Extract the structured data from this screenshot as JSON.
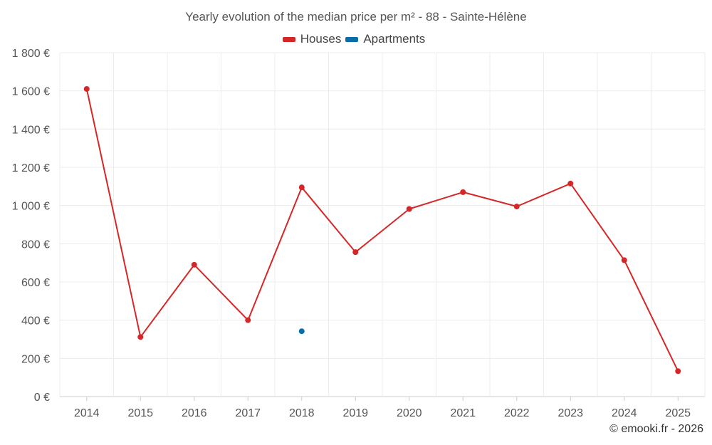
{
  "chart_data": {
    "type": "line",
    "title": "Yearly evolution of the median price per m² - 88 - Sainte-Hélène",
    "categories": [
      "2014",
      "2015",
      "2016",
      "2017",
      "2018",
      "2019",
      "2020",
      "2021",
      "2022",
      "2023",
      "2024",
      "2025"
    ],
    "series": [
      {
        "name": "Houses",
        "color": "#d62728",
        "values": [
          1610,
          312,
          690,
          400,
          1095,
          756,
          982,
          1070,
          995,
          1115,
          714,
          133
        ]
      },
      {
        "name": "Apartments",
        "color": "#0a6ea8",
        "values": [
          null,
          null,
          null,
          null,
          342,
          null,
          null,
          null,
          null,
          null,
          null,
          null
        ]
      }
    ],
    "ylim": [
      0,
      1800
    ],
    "yticks": [
      0,
      200,
      400,
      600,
      800,
      1000,
      1200,
      1400,
      1600,
      1800
    ],
    "ytick_labels": [
      "0 €",
      "200 €",
      "400 €",
      "600 €",
      "800 €",
      "1 000 €",
      "1 200 €",
      "1 400 €",
      "1 600 €",
      "1 800 €"
    ],
    "grid": true,
    "legend_position": "top-center",
    "xlabel": "",
    "ylabel": ""
  },
  "credit": "© emooki.fr - 2026"
}
